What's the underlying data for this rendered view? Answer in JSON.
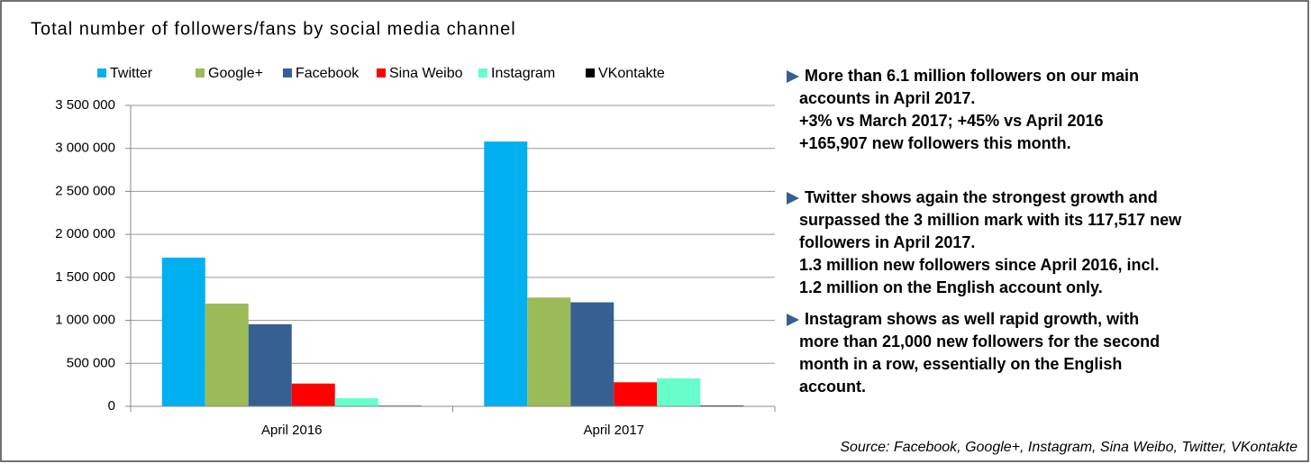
{
  "chart_data": {
    "type": "bar",
    "title": "Total number of followers/fans by social media channel",
    "categories": [
      "April 2016",
      "April 2017"
    ],
    "series": [
      {
        "name": "Twitter",
        "color": "#00b0f0",
        "values": [
          1730000,
          3080000
        ]
      },
      {
        "name": "Google+",
        "color": "#9bbb59",
        "values": [
          1195000,
          1265000
        ]
      },
      {
        "name": "Facebook",
        "color": "#376092",
        "values": [
          955000,
          1210000
        ]
      },
      {
        "name": "Sina Weibo",
        "color": "#ff0000",
        "values": [
          265000,
          280000
        ]
      },
      {
        "name": "Instagram",
        "color": "#66ffcc",
        "values": [
          95000,
          325000
        ]
      },
      {
        "name": "VKontakte",
        "color": "#000000",
        "values": [
          8000,
          10000
        ]
      }
    ],
    "ylim": [
      0,
      3500000
    ],
    "yticks": [
      0,
      {
        "value": 500000,
        "label": "500 000"
      },
      {
        "value": 1000000,
        "label": "1 000 000"
      },
      {
        "value": 1500000,
        "label": "1 500 000"
      },
      {
        "value": 2000000,
        "label": "2 000 000"
      },
      {
        "value": 2500000,
        "label": "2 500 000"
      },
      {
        "value": 3000000,
        "label": "3 000 000"
      },
      {
        "value": 3500000,
        "label": "3 500 000"
      }
    ],
    "grid": true,
    "legend": "top"
  },
  "text_panel": {
    "paragraphs": [
      {
        "lines": [
          "More than 6.1 million followers on our main",
          "accounts in April 2017.",
          "+3% vs March 2017; +45% vs April 2016",
          "+165,907 new followers this month."
        ]
      },
      {
        "lines": [
          "Twitter shows again the strongest growth and",
          "surpassed the 3 million mark with its 117,517 new",
          "followers in April 2017.",
          "1.3 million new followers since April 2016, incl.",
          "1.2 million on the English account only."
        ]
      },
      {
        "lines": [
          "Instagram shows as well rapid growth, with",
          "more than 21,000 new followers for the second",
          "month in a row, essentially on the English",
          "account."
        ]
      }
    ]
  },
  "source": "Source: Facebook, Google+, Instagram, Sina Weibo, Twitter, VKontakte"
}
